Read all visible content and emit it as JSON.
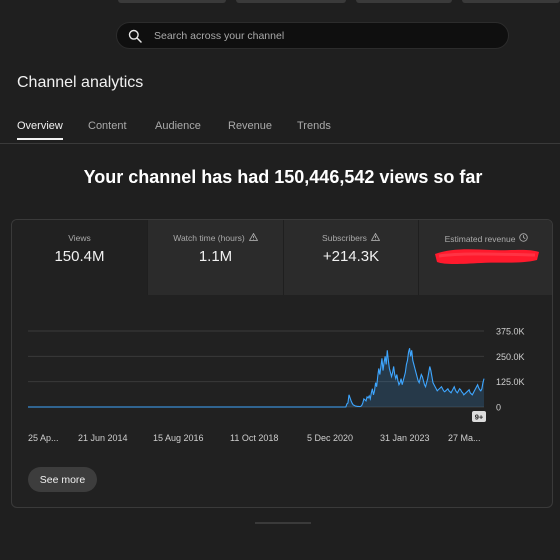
{
  "search": {
    "placeholder": "Search across your channel"
  },
  "page_title": "Channel analytics",
  "tabs": [
    {
      "label": "Overview",
      "active": true
    },
    {
      "label": "Content",
      "active": false
    },
    {
      "label": "Audience",
      "active": false
    },
    {
      "label": "Revenue",
      "active": false
    },
    {
      "label": "Trends",
      "active": false
    }
  ],
  "headline": "Your channel has had 150,446,542 views so far",
  "metrics": [
    {
      "label": "Views",
      "value": "150.4M",
      "icon": ""
    },
    {
      "label": "Watch time (hours)",
      "value": "1.1M",
      "icon": "warning-icon"
    },
    {
      "label": "Subscribers",
      "value": "+214.3K",
      "icon": "warning-icon"
    },
    {
      "label": "Estimated revenue",
      "value": "",
      "icon": "clock-icon",
      "redacted": true
    }
  ],
  "chart_data": {
    "type": "area",
    "y_ticks": [
      "375.0K",
      "250.0K",
      "125.0K",
      "0"
    ],
    "ylim": [
      0,
      375000
    ],
    "x_ticks": [
      "25 Ap...",
      "21 Jun 2014",
      "15 Aug 2016",
      "11 Oct 2018",
      "5 Dec 2020",
      "31 Jan 2023",
      "27 Ma..."
    ],
    "series": [
      {
        "values": [
          0,
          0,
          0,
          0,
          0,
          0,
          0,
          0,
          0,
          0,
          0,
          0,
          0,
          0,
          0,
          0,
          0,
          0,
          0,
          0,
          0,
          0,
          0,
          0,
          0,
          0,
          0,
          0,
          0,
          0,
          0,
          0,
          0,
          0,
          0,
          0,
          0,
          0,
          0,
          0,
          0,
          0,
          0,
          0,
          0,
          0,
          0,
          0,
          0,
          0,
          0,
          0,
          0,
          0,
          0,
          0,
          0,
          0,
          0,
          0,
          0,
          0,
          0,
          0,
          0,
          0,
          0,
          0,
          0,
          0,
          0,
          0,
          0,
          0,
          0,
          0,
          0,
          0,
          0,
          0,
          0,
          0,
          0,
          0,
          0,
          0,
          0,
          0,
          0,
          0,
          0,
          0,
          0,
          0,
          0,
          0,
          0,
          0,
          0,
          0,
          0,
          0,
          0,
          0,
          0,
          0,
          0,
          0,
          0,
          0,
          0,
          0,
          0,
          0,
          0,
          0,
          0,
          0,
          0,
          0,
          0,
          0,
          0,
          0,
          0,
          0,
          0,
          0,
          0,
          0,
          0,
          0,
          0,
          0,
          0,
          0,
          0,
          0,
          0,
          0,
          0,
          0,
          0,
          0,
          0,
          0,
          0,
          0,
          0,
          0,
          0,
          0,
          0,
          0,
          0,
          0,
          0,
          0,
          0,
          0,
          0,
          0,
          0,
          0,
          0,
          0,
          0,
          0,
          0,
          0,
          0,
          0,
          0,
          0,
          0,
          0,
          0,
          0,
          0,
          0,
          0,
          0,
          0,
          0,
          0,
          0,
          0,
          0,
          0,
          0,
          0,
          0,
          0,
          0,
          0,
          0,
          0,
          0,
          0,
          0,
          0,
          0,
          0,
          0,
          0,
          0,
          0,
          0,
          0,
          0,
          0,
          0,
          0,
          0,
          0,
          0,
          0,
          0,
          0,
          0,
          0,
          0,
          0,
          0,
          0,
          0,
          0,
          0,
          0,
          0,
          0,
          0,
          0,
          0,
          0,
          0,
          0,
          0,
          0,
          0,
          0,
          0,
          0,
          0,
          0,
          0,
          0,
          0,
          0,
          0,
          0,
          0,
          0,
          0,
          0,
          0,
          0,
          0,
          0,
          0,
          0,
          0,
          0,
          0,
          0,
          0,
          0,
          0,
          0,
          0,
          0,
          0,
          0,
          0,
          0,
          0,
          0,
          0,
          0,
          0,
          0,
          0,
          0,
          0,
          0,
          0,
          0,
          0,
          0,
          0,
          0,
          0,
          0,
          0,
          0,
          0,
          0,
          0,
          0,
          0,
          15000,
          20000,
          60000,
          45000,
          30000,
          18000,
          10000,
          8000,
          5000,
          4000,
          3000,
          3000,
          2000,
          3000,
          8000,
          20000,
          40000,
          35000,
          30000,
          50000,
          45000,
          55000,
          40000,
          70000,
          90000,
          60000,
          80000,
          120000,
          100000,
          150000,
          190000,
          160000,
          200000,
          240000,
          180000,
          220000,
          250000,
          210000,
          280000,
          230000,
          190000,
          170000,
          150000,
          170000,
          200000,
          160000,
          140000,
          160000,
          130000,
          110000,
          120000,
          140000,
          110000,
          130000,
          150000,
          170000,
          210000,
          230000,
          270000,
          290000,
          250000,
          280000,
          230000,
          210000,
          190000,
          170000,
          150000,
          130000,
          120000,
          140000,
          160000,
          150000,
          130000,
          110000,
          100000,
          120000,
          140000,
          170000,
          200000,
          180000,
          150000,
          120000,
          110000,
          100000,
          90000,
          80000,
          85000,
          90000,
          95000,
          100000,
          90000,
          80000,
          75000,
          80000,
          85000,
          90000,
          80000,
          75000,
          70000,
          80000,
          90000,
          100000,
          85000,
          75000,
          70000,
          80000,
          90000,
          85000,
          75000,
          70000,
          60000,
          65000,
          70000,
          75000,
          80000,
          85000,
          70000,
          65000,
          60000,
          70000,
          80000,
          90000,
          100000,
          110000,
          95000,
          85000,
          80000,
          90000,
          120000,
          140000
        ]
      }
    ],
    "line_color": "#3ea6ff",
    "fill_color": "#3ea6ff"
  },
  "chart_badge": "9+",
  "see_more_label": "See more"
}
